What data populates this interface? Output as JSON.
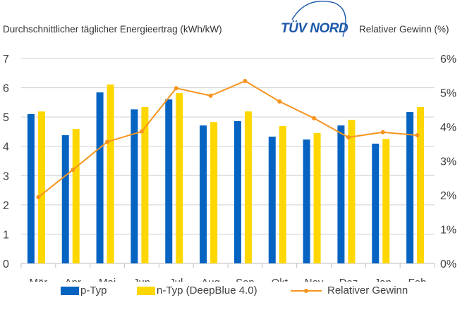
{
  "header": {
    "left_title": "Durchschnittlicher täglicher Energieertrag  (kWh/kW)",
    "right_title": "Relativer Gewinn  (%)",
    "logo_text": "TÜV NORD",
    "logo_icon": "tuv-nord-arc-logo"
  },
  "colors": {
    "p_typ": "#0563c1",
    "n_typ": "#ffd700",
    "relative": "#f7941d",
    "grid": "#d0d0d0",
    "axis_text": "#404040"
  },
  "chart_data": {
    "type": "bar",
    "title": "",
    "xlabel": "",
    "ylabel": "Durchschnittlicher täglicher Energieertrag  (kWh/kW)",
    "y2label": "Relativer Gewinn  (%)",
    "categories": [
      "Mär",
      "Apr",
      "Mai",
      "Jun",
      "Jul",
      "Aug",
      "Sep",
      "Okt",
      "Nov",
      "Dez",
      "Jan",
      "Feb"
    ],
    "ylim": [
      0,
      7
    ],
    "yticks": [
      "0",
      "1",
      "2",
      "3",
      "4",
      "5",
      "6",
      "7"
    ],
    "y2lim": [
      0,
      6
    ],
    "y2ticks": [
      "0%",
      "1%",
      "2%",
      "3%",
      "4%",
      "5%",
      "6%"
    ],
    "grid": true,
    "legend_position": "bottom",
    "series": [
      {
        "name": "p-Typ",
        "type": "bar",
        "axis": "left",
        "values": [
          5.1,
          4.38,
          5.84,
          5.26,
          5.6,
          4.71,
          4.86,
          4.33,
          4.23,
          4.71,
          4.09,
          5.17
        ]
      },
      {
        "name": "n-Typ (DeepBlue 4.0)",
        "type": "bar",
        "axis": "left",
        "values": [
          5.19,
          4.59,
          6.11,
          5.34,
          5.82,
          4.83,
          5.19,
          4.69,
          4.45,
          4.9,
          4.25,
          5.34
        ]
      },
      {
        "name": "Relativer Gewinn",
        "type": "line",
        "axis": "right",
        "unit": "%",
        "values": [
          1.94,
          2.74,
          3.56,
          3.86,
          5.13,
          4.91,
          5.34,
          4.74,
          4.25,
          3.69,
          3.84,
          3.75
        ]
      }
    ]
  }
}
